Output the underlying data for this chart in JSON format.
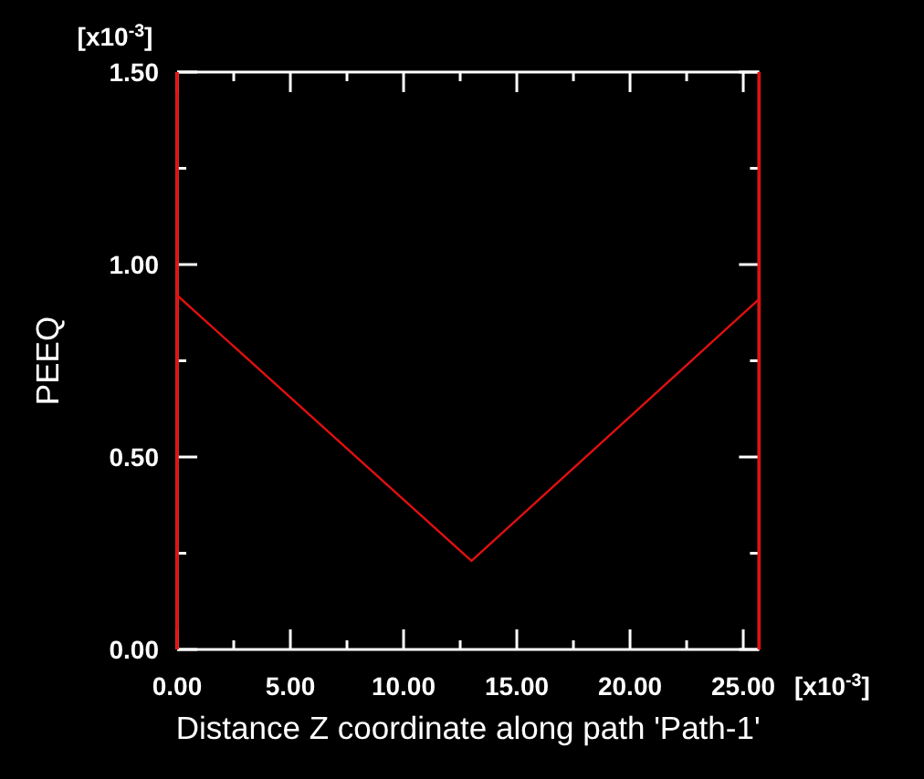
{
  "chart_data": {
    "type": "line",
    "xlabel": "Distance Z coordinate along path 'Path-1'",
    "ylabel": "PEEQ",
    "annotations": [
      "[x10$^{-3}$]",
      "[x10$^{-3}$]"
    ],
    "x": [
      0,
      13,
      25.7
    ],
    "series": [
      {
        "color": "#e01010",
        "values": [
          0.92,
          0.23,
          0.91
        ]
      }
    ],
    "xlim": [
      0,
      25.7
    ],
    "ylim": [
      0,
      1.5
    ],
    "xticks": [
      {
        "value": 0,
        "label": "0.00"
      },
      {
        "value": 2.5,
        "label": null
      },
      {
        "value": 5,
        "label": "5.00"
      },
      {
        "value": 7.5,
        "label": null
      },
      {
        "value": 10,
        "label": "10.00"
      },
      {
        "value": 12.5,
        "label": null
      },
      {
        "value": 15,
        "label": "15.00"
      },
      {
        "value": 17.5,
        "label": null
      },
      {
        "value": 20,
        "label": "20.00"
      },
      {
        "value": 22.5,
        "label": null
      },
      {
        "value": 25,
        "label": "25.00"
      }
    ],
    "yticks": [
      {
        "value": 0,
        "label": "0.00"
      },
      {
        "value": 0.25,
        "label": null
      },
      {
        "value": 0.5,
        "label": "0.50"
      },
      {
        "value": 0.75,
        "label": null
      },
      {
        "value": 1,
        "label": "1.00"
      },
      {
        "value": 1.25,
        "label": null
      },
      {
        "value": 1.5,
        "label": "1.50"
      }
    ],
    "ref_lines": [
      {
        "axis": "x",
        "value": 0,
        "color": "#e01010"
      },
      {
        "axis": "x",
        "value": 25.7,
        "color": "#e01010"
      }
    ],
    "line_style": "solid"
  }
}
